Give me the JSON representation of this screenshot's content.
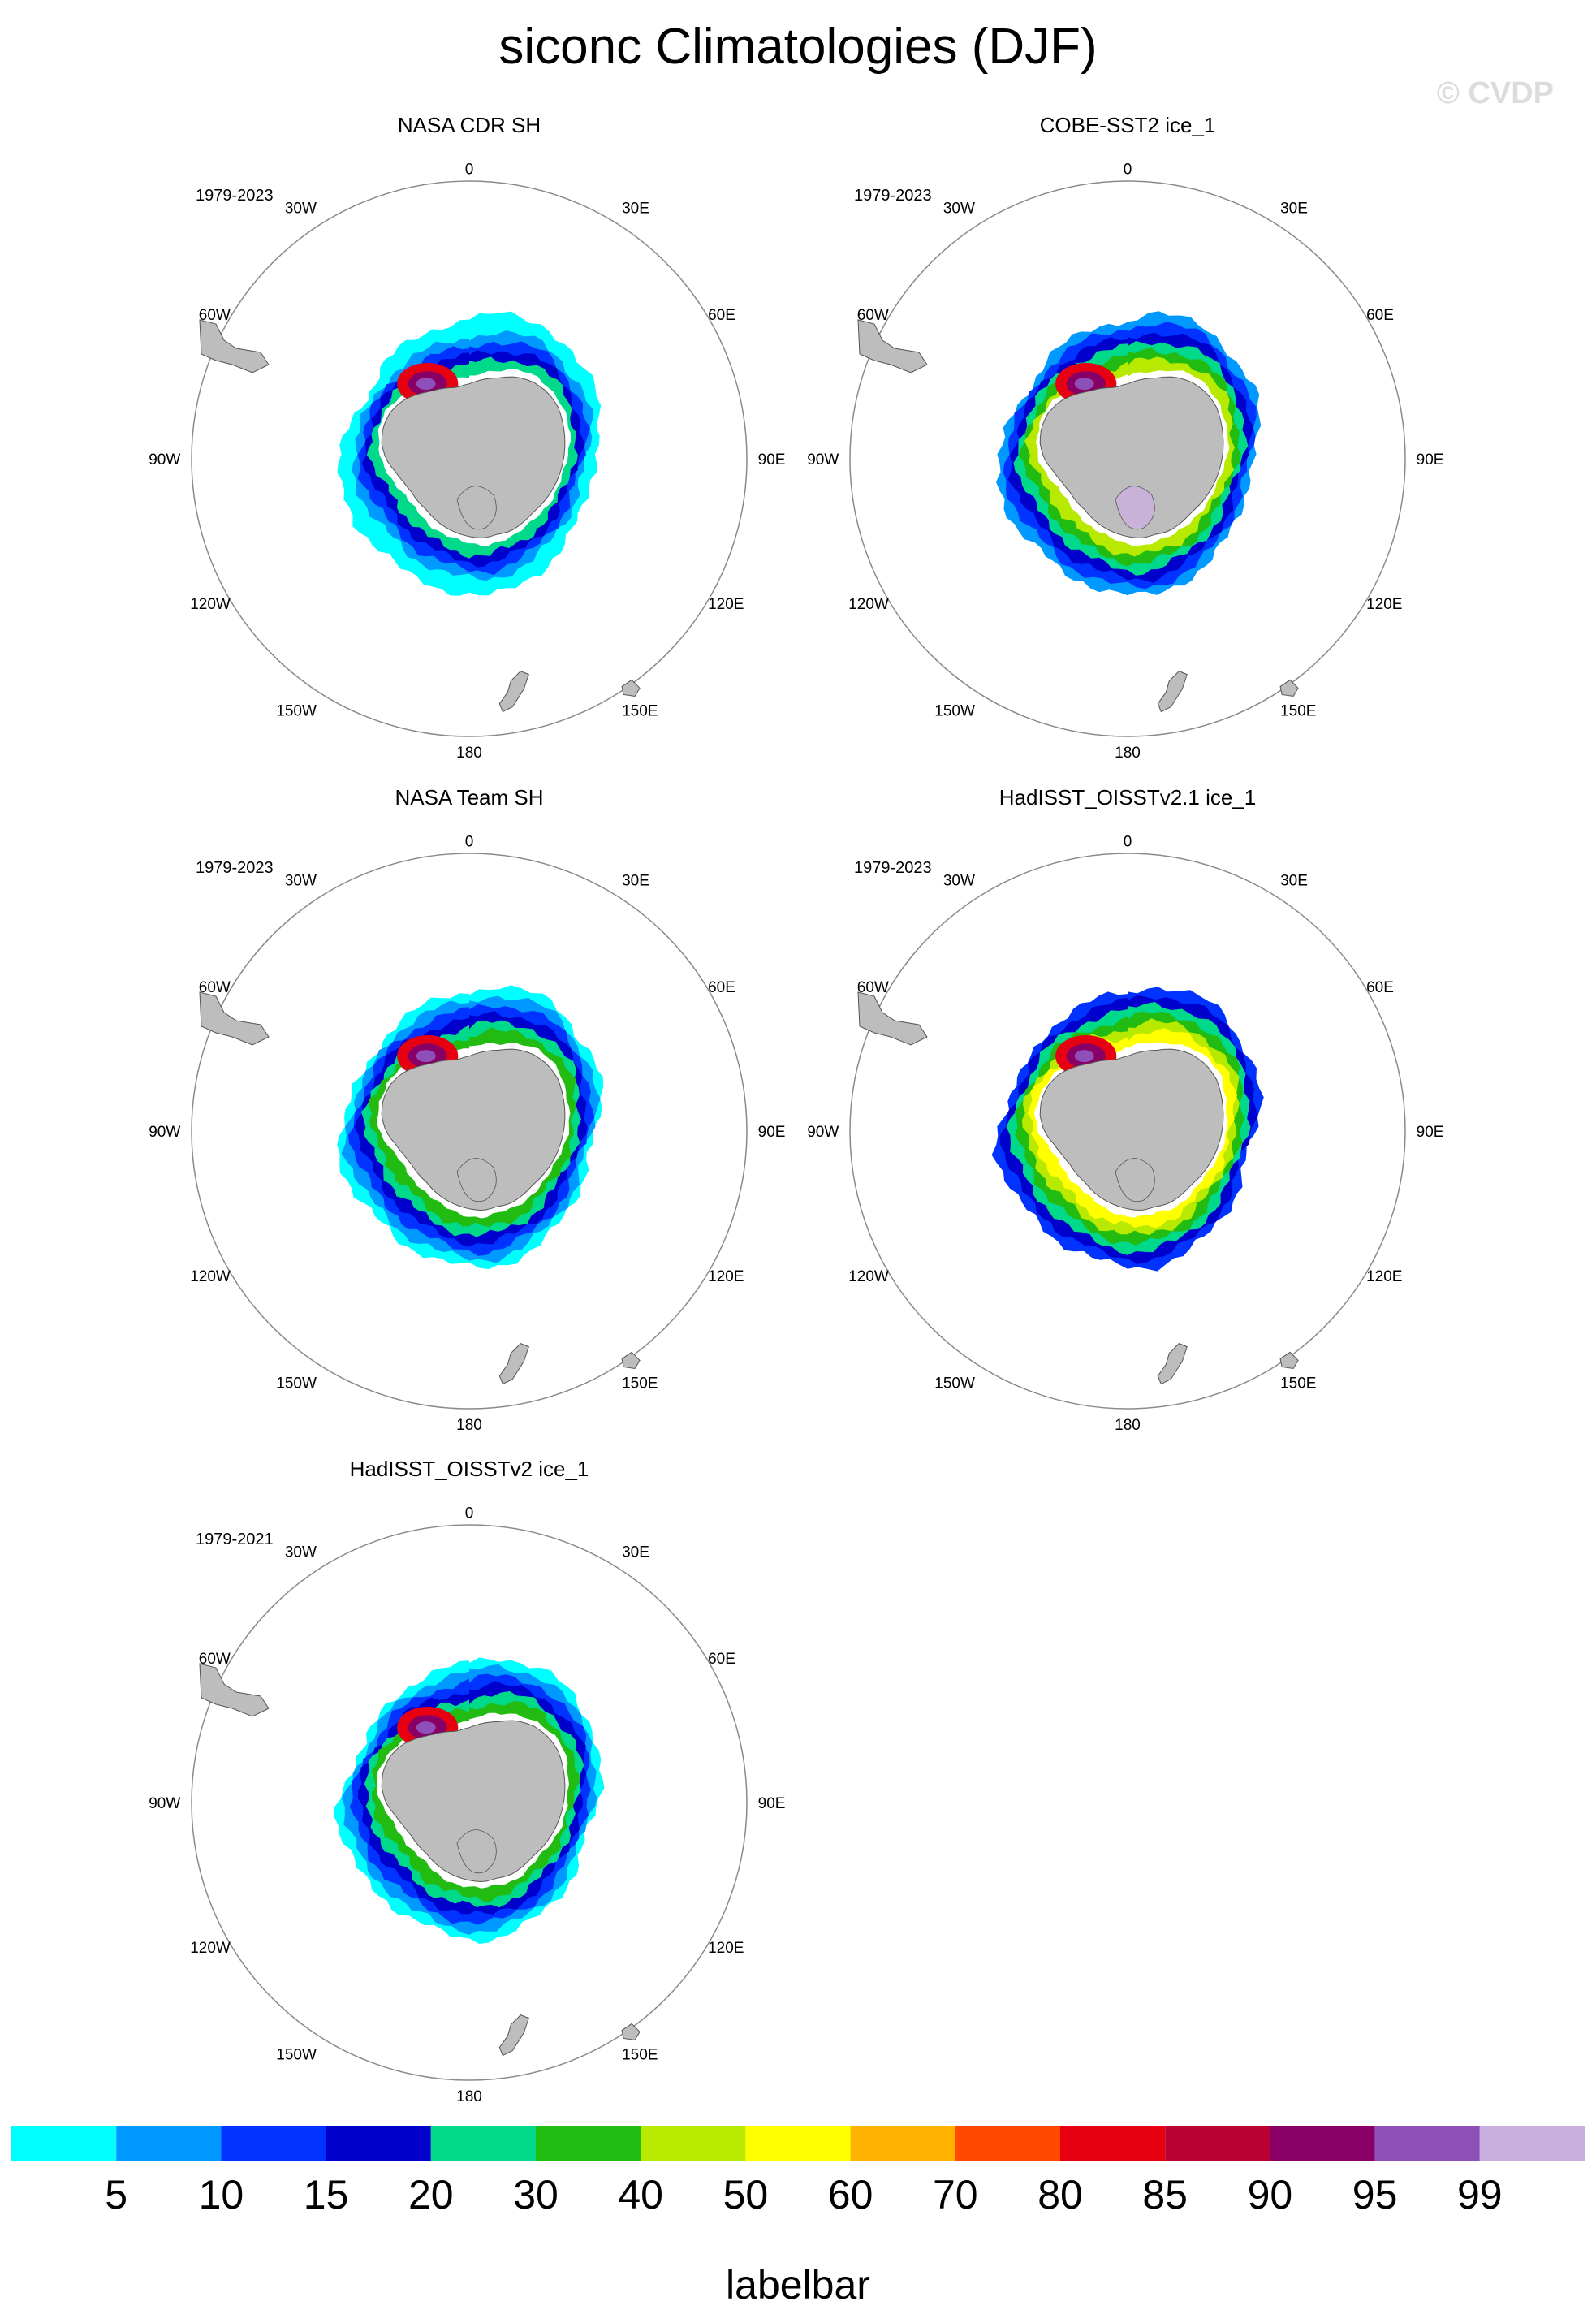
{
  "title": "siconc Climatologies (DJF)",
  "watermark": "© CVDP",
  "colors": {
    "land": "#bdbdbd",
    "land_edge": "#555555",
    "circle": "#8a8a8a",
    "white_gap": "#ffffff"
  },
  "lon_labels": [
    "0",
    "30E",
    "60E",
    "90E",
    "120E",
    "150E",
    "180",
    "150W",
    "120W",
    "90W",
    "60W",
    "30W"
  ],
  "panels": [
    {
      "title": "NASA CDR SH",
      "period": "1979-2023",
      "shelf": "#bdbdbd",
      "rings": [
        0,
        0,
        1,
        2,
        3,
        4
      ]
    },
    {
      "title": "COBE-SST2 ice_1",
      "period": "1979-2023",
      "shelf": "#c9b2d8",
      "rings": [
        1,
        2,
        3,
        4,
        5,
        6
      ]
    },
    {
      "title": "NASA Team SH",
      "period": "1979-2023",
      "shelf": "#bdbdbd",
      "rings": [
        0,
        1,
        2,
        3,
        4,
        5
      ]
    },
    {
      "title": "HadISST_OISSTv2.1 ice_1",
      "period": "1979-2023",
      "shelf": "#bdbdbd",
      "rings": [
        2,
        3,
        4,
        5,
        6,
        7
      ]
    },
    {
      "title": "HadISST_OISSTv2 ice_1",
      "period": "1979-2021",
      "shelf": "#bdbdbd",
      "rings": [
        0,
        1,
        2,
        3,
        4,
        5
      ]
    }
  ],
  "labelbar": {
    "title": "labelbar",
    "colors": [
      "#00ffff",
      "#0099ff",
      "#0033ff",
      "#0000cc",
      "#00d98a",
      "#22bb11",
      "#b7ea00",
      "#ffff00",
      "#ffb300",
      "#ff4a00",
      "#e60012",
      "#bb0033",
      "#880066",
      "#8e50b8",
      "#c8aedc"
    ],
    "labels": [
      "5",
      "10",
      "15",
      "20",
      "30",
      "40",
      "50",
      "60",
      "70",
      "80",
      "85",
      "90",
      "95",
      "99"
    ]
  }
}
